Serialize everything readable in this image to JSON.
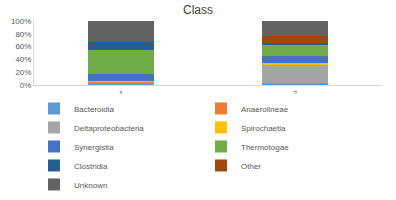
{
  "chart_data": {
    "type": "bar",
    "title": "Class",
    "stacked": true,
    "categories": [
      "1",
      "2"
    ],
    "series": [
      {
        "name": "Bacteroidia",
        "color": "#5b9bd5",
        "values": [
          1,
          1
        ]
      },
      {
        "name": "Anaerolineae",
        "color": "#ed7d31",
        "values": [
          3,
          2
        ]
      },
      {
        "name": "Deltaproteobacteria",
        "color": "#a5a5a5",
        "values": [
          1,
          28
        ]
      },
      {
        "name": "Spirochaetia",
        "color": "#ffc000",
        "values": [
          1,
          4
        ]
      },
      {
        "name": "Synergistia",
        "color": "#4472c4",
        "values": [
          11,
          10
        ]
      },
      {
        "name": "Thermotogae",
        "color": "#70ad47",
        "values": [
          37,
          18
        ]
      },
      {
        "name": "Clostridia",
        "color": "#255e91",
        "values": [
          13,
          3
        ]
      },
      {
        "name": "Other",
        "color": "#9e480e",
        "values": [
          2,
          10
        ]
      },
      {
        "name": "Unknown",
        "color": "#636363",
        "values": [
          31,
          24
        ]
      }
    ],
    "ylim": [
      0,
      100
    ],
    "yticks": [
      {
        "value": 0,
        "label": "0%"
      },
      {
        "value": 20,
        "label": "20%"
      },
      {
        "value": 40,
        "label": "40%"
      },
      {
        "value": 60,
        "label": "60%"
      },
      {
        "value": 80,
        "label": "80%"
      },
      {
        "value": 100,
        "label": "100%"
      }
    ],
    "grid": false,
    "legend": "bottom"
  }
}
